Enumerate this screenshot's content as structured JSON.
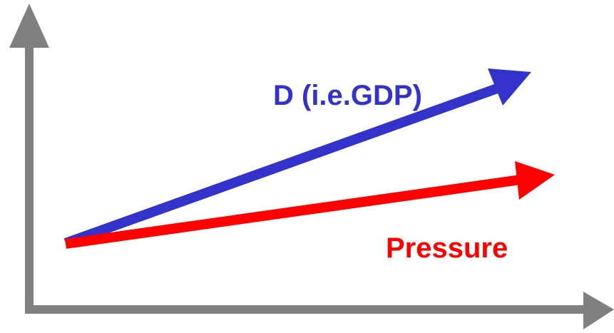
{
  "labels": {
    "gdp": "D (i.e.GDP)",
    "pressure": "Pressure"
  },
  "colors": {
    "axis": "#808080",
    "gdp": "#3333cc",
    "pressure": "#ff0000",
    "background": "#ffffff"
  }
}
